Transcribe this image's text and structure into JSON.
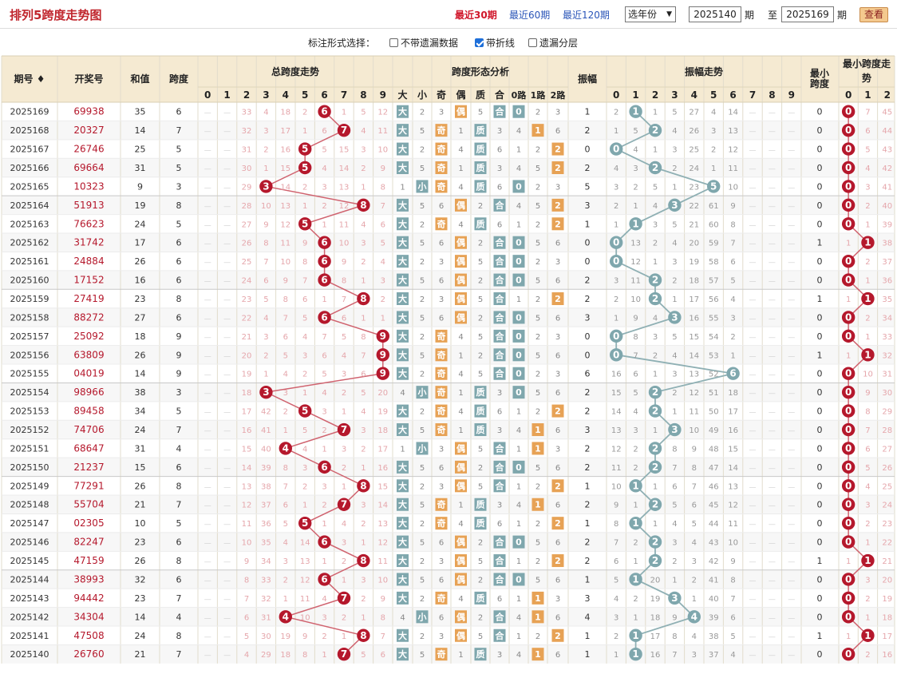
{
  "page": {
    "title": "排列5跨度走势图"
  },
  "toolbar": {
    "recent30": "最近30期",
    "recent60": "最近60期",
    "recent120": "最近120期",
    "year_select": "选年份",
    "from_value": "2025140",
    "qi": "期",
    "to_label": "至",
    "to_value": "2025169",
    "query": "查看"
  },
  "options": {
    "label": "标注形式选择：",
    "opt1": "不带遗漏数据",
    "opt1_checked": false,
    "opt2": "带折线",
    "opt2_checked": true,
    "opt3": "遗漏分层",
    "opt3_checked": false
  },
  "headers": {
    "period": "期号",
    "draw": "开奖号",
    "sum": "和值",
    "span": "跨度",
    "span_trend": "总跨度走势",
    "span_form": "跨度形态分析",
    "amp": "振幅",
    "amp_trend": "振幅走势",
    "min_span": "最小跨度",
    "min_span_trend": "最小跨度走势",
    "digits": [
      "0",
      "1",
      "2",
      "3",
      "4",
      "5",
      "6",
      "7",
      "8",
      "9"
    ],
    "form_cols": [
      "大",
      "小",
      "奇",
      "偶",
      "质",
      "合",
      "0路",
      "1路",
      "2路"
    ],
    "min_cols": [
      "0",
      "1",
      "2"
    ]
  },
  "colors": {
    "red": "#b5182c",
    "teal": "#7fa7ad",
    "orange": "#e7a255",
    "header_bg": "#f5ead2",
    "pale": "#e5a6ab"
  },
  "rows": [
    {
      "p": "2025169",
      "d": "69938",
      "s": 35,
      "k": 6,
      "o": [
        33,
        4,
        18,
        2,
        null,
        1,
        5,
        12
      ],
      "amp": 1,
      "am": [
        2,
        null,
        1,
        5,
        27,
        4,
        14
      ],
      "m": 0,
      "mm": [
        null,
        7,
        45
      ]
    },
    {
      "p": "2025168",
      "d": "20327",
      "s": 14,
      "k": 7,
      "o": [
        32,
        3,
        17,
        1,
        6,
        null,
        4,
        11
      ],
      "amp": 2,
      "am": [
        1,
        5,
        null,
        4,
        26,
        3,
        13
      ],
      "m": 0,
      "mm": [
        null,
        6,
        44
      ]
    },
    {
      "p": "2025167",
      "d": "26746",
      "s": 25,
      "k": 5,
      "o": [
        31,
        2,
        16,
        null,
        5,
        15,
        3,
        10
      ],
      "amp": 0,
      "am": [
        null,
        4,
        1,
        3,
        25,
        2,
        12
      ],
      "m": 0,
      "mm": [
        null,
        5,
        43
      ]
    },
    {
      "p": "2025166",
      "d": "69664",
      "s": 31,
      "k": 5,
      "o": [
        30,
        1,
        15,
        null,
        4,
        14,
        2,
        9
      ],
      "amp": 2,
      "am": [
        4,
        3,
        null,
        2,
        24,
        1,
        11
      ],
      "m": 0,
      "mm": [
        null,
        4,
        42
      ]
    },
    {
      "p": "2025165",
      "d": "10323",
      "s": 9,
      "k": 3,
      "o": [
        29,
        null,
        14,
        2,
        3,
        13,
        1,
        8
      ],
      "amp": 5,
      "am": [
        3,
        2,
        5,
        1,
        23,
        null,
        10
      ],
      "m": 0,
      "mm": [
        null,
        3,
        41
      ]
    },
    {
      "p": "2025164",
      "d": "51913",
      "s": 19,
      "k": 8,
      "o": [
        28,
        10,
        13,
        1,
        2,
        12,
        null,
        7
      ],
      "amp": 3,
      "am": [
        2,
        1,
        4,
        null,
        22,
        61,
        9
      ],
      "m": 0,
      "mm": [
        null,
        2,
        40
      ]
    },
    {
      "p": "2025163",
      "d": "76623",
      "s": 24,
      "k": 5,
      "o": [
        27,
        9,
        12,
        null,
        1,
        11,
        4,
        6
      ],
      "amp": 1,
      "am": [
        1,
        null,
        3,
        5,
        21,
        60,
        8
      ],
      "m": 0,
      "mm": [
        null,
        1,
        39
      ]
    },
    {
      "p": "2025162",
      "d": "31742",
      "s": 17,
      "k": 6,
      "o": [
        26,
        8,
        11,
        9,
        null,
        10,
        3,
        5
      ],
      "amp": 0,
      "am": [
        null,
        13,
        2,
        4,
        20,
        59,
        7
      ],
      "m": 1,
      "mm": [
        1,
        null,
        38
      ]
    },
    {
      "p": "2025161",
      "d": "24884",
      "s": 26,
      "k": 6,
      "o": [
        25,
        7,
        10,
        8,
        null,
        9,
        2,
        4
      ],
      "amp": 0,
      "am": [
        null,
        12,
        1,
        3,
        19,
        58,
        6
      ],
      "m": 0,
      "mm": [
        null,
        2,
        37
      ]
    },
    {
      "p": "2025160",
      "d": "17152",
      "s": 16,
      "k": 6,
      "o": [
        24,
        6,
        9,
        7,
        null,
        8,
        1,
        3
      ],
      "amp": 2,
      "am": [
        3,
        11,
        null,
        2,
        18,
        57,
        5
      ],
      "m": 0,
      "mm": [
        null,
        1,
        36
      ]
    },
    {
      "p": "2025159",
      "d": "27419",
      "s": 23,
      "k": 8,
      "o": [
        23,
        5,
        8,
        6,
        1,
        7,
        null,
        2
      ],
      "amp": 2,
      "am": [
        2,
        10,
        null,
        1,
        17,
        56,
        4
      ],
      "m": 1,
      "mm": [
        1,
        null,
        35
      ]
    },
    {
      "p": "2025158",
      "d": "88272",
      "s": 27,
      "k": 6,
      "o": [
        22,
        4,
        7,
        5,
        null,
        6,
        1,
        1
      ],
      "amp": 3,
      "am": [
        1,
        9,
        4,
        null,
        16,
        55,
        3
      ],
      "m": 0,
      "mm": [
        null,
        2,
        34
      ]
    },
    {
      "p": "2025157",
      "d": "25092",
      "s": 18,
      "k": 9,
      "o": [
        21,
        3,
        6,
        4,
        7,
        5,
        8,
        null
      ],
      "amp": 0,
      "am": [
        null,
        8,
        3,
        5,
        15,
        54,
        2
      ],
      "m": 0,
      "mm": [
        null,
        1,
        33
      ]
    },
    {
      "p": "2025156",
      "d": "63809",
      "s": 26,
      "k": 9,
      "o": [
        20,
        2,
        5,
        3,
        6,
        4,
        7,
        null
      ],
      "amp": 0,
      "am": [
        null,
        7,
        2,
        4,
        14,
        53,
        1
      ],
      "m": 1,
      "mm": [
        1,
        null,
        32
      ]
    },
    {
      "p": "2025155",
      "d": "04019",
      "s": 14,
      "k": 9,
      "o": [
        19,
        1,
        4,
        2,
        5,
        3,
        6,
        null
      ],
      "amp": 6,
      "am": [
        16,
        6,
        1,
        3,
        13,
        52,
        null
      ],
      "m": 0,
      "mm": [
        null,
        10,
        31
      ]
    },
    {
      "p": "2025154",
      "d": "98966",
      "s": 38,
      "k": 3,
      "o": [
        18,
        null,
        3,
        1,
        4,
        2,
        5,
        20
      ],
      "amp": 2,
      "am": [
        15,
        5,
        null,
        2,
        12,
        51,
        18
      ],
      "m": 0,
      "mm": [
        null,
        9,
        30
      ]
    },
    {
      "p": "2025153",
      "d": "89458",
      "s": 34,
      "k": 5,
      "o": [
        17,
        42,
        2,
        null,
        3,
        1,
        4,
        19
      ],
      "amp": 2,
      "am": [
        14,
        4,
        null,
        1,
        11,
        50,
        17
      ],
      "m": 0,
      "mm": [
        null,
        8,
        29
      ]
    },
    {
      "p": "2025152",
      "d": "74706",
      "s": 24,
      "k": 7,
      "o": [
        16,
        41,
        1,
        5,
        2,
        null,
        3,
        18
      ],
      "amp": 3,
      "am": [
        13,
        3,
        1,
        null,
        10,
        49,
        16
      ],
      "m": 0,
      "mm": [
        null,
        7,
        28
      ]
    },
    {
      "p": "2025151",
      "d": "68647",
      "s": 31,
      "k": 4,
      "o": [
        15,
        40,
        null,
        4,
        1,
        3,
        2,
        17
      ],
      "amp": 2,
      "am": [
        12,
        2,
        null,
        8,
        9,
        48,
        15
      ],
      "m": 0,
      "mm": [
        null,
        6,
        27
      ]
    },
    {
      "p": "2025150",
      "d": "21237",
      "s": 15,
      "k": 6,
      "o": [
        14,
        39,
        8,
        3,
        null,
        2,
        1,
        16
      ],
      "amp": 2,
      "am": [
        11,
        2,
        null,
        7,
        8,
        47,
        14
      ],
      "m": 0,
      "mm": [
        null,
        5,
        26
      ]
    },
    {
      "p": "2025149",
      "d": "77291",
      "s": 26,
      "k": 8,
      "o": [
        13,
        38,
        7,
        2,
        3,
        1,
        null,
        15
      ],
      "amp": 1,
      "am": [
        10,
        null,
        1,
        6,
        7,
        46,
        13
      ],
      "m": 0,
      "mm": [
        null,
        4,
        25
      ]
    },
    {
      "p": "2025148",
      "d": "55704",
      "s": 21,
      "k": 7,
      "o": [
        12,
        37,
        6,
        1,
        2,
        null,
        3,
        14
      ],
      "amp": 2,
      "am": [
        9,
        1,
        null,
        5,
        6,
        45,
        12
      ],
      "m": 0,
      "mm": [
        null,
        3,
        24
      ]
    },
    {
      "p": "2025147",
      "d": "02305",
      "s": 10,
      "k": 5,
      "o": [
        11,
        36,
        5,
        null,
        1,
        4,
        2,
        13
      ],
      "amp": 1,
      "am": [
        8,
        null,
        1,
        4,
        5,
        44,
        11
      ],
      "m": 0,
      "mm": [
        null,
        2,
        23
      ]
    },
    {
      "p": "2025146",
      "d": "82247",
      "s": 23,
      "k": 6,
      "o": [
        10,
        35,
        4,
        14,
        null,
        3,
        1,
        12
      ],
      "amp": 2,
      "am": [
        7,
        2,
        null,
        3,
        4,
        43,
        10
      ],
      "m": 0,
      "mm": [
        null,
        1,
        22
      ]
    },
    {
      "p": "2025145",
      "d": "47159",
      "s": 26,
      "k": 8,
      "o": [
        9,
        34,
        3,
        13,
        1,
        2,
        null,
        11
      ],
      "amp": 2,
      "am": [
        6,
        1,
        null,
        2,
        3,
        42,
        9
      ],
      "m": 1,
      "mm": [
        1,
        null,
        21
      ]
    },
    {
      "p": "2025144",
      "d": "38993",
      "s": 32,
      "k": 6,
      "o": [
        8,
        33,
        2,
        12,
        null,
        1,
        3,
        10
      ],
      "amp": 1,
      "am": [
        5,
        null,
        20,
        1,
        2,
        41,
        8
      ],
      "m": 0,
      "mm": [
        null,
        3,
        20
      ]
    },
    {
      "p": "2025143",
      "d": "94442",
      "s": 23,
      "k": 7,
      "o": [
        7,
        32,
        1,
        11,
        4,
        null,
        2,
        9
      ],
      "amp": 3,
      "am": [
        4,
        2,
        19,
        null,
        1,
        40,
        7
      ],
      "m": 0,
      "mm": [
        null,
        2,
        19
      ]
    },
    {
      "p": "2025142",
      "d": "34304",
      "s": 14,
      "k": 4,
      "o": [
        6,
        31,
        null,
        10,
        3,
        2,
        1,
        8
      ],
      "amp": 4,
      "am": [
        3,
        1,
        18,
        9,
        null,
        39,
        6
      ],
      "m": 0,
      "mm": [
        null,
        1,
        18
      ]
    },
    {
      "p": "2025141",
      "d": "47508",
      "s": 24,
      "k": 8,
      "o": [
        5,
        30,
        19,
        9,
        2,
        1,
        null,
        7
      ],
      "amp": 1,
      "am": [
        2,
        null,
        17,
        8,
        4,
        38,
        5
      ],
      "m": 1,
      "mm": [
        1,
        null,
        17
      ]
    },
    {
      "p": "2025140",
      "d": "26760",
      "s": 21,
      "k": 7,
      "o": [
        4,
        29,
        18,
        8,
        1,
        null,
        5,
        6
      ],
      "amp": 1,
      "am": [
        1,
        null,
        16,
        7,
        3,
        37,
        4
      ],
      "m": 0,
      "mm": [
        null,
        2,
        16
      ]
    }
  ]
}
